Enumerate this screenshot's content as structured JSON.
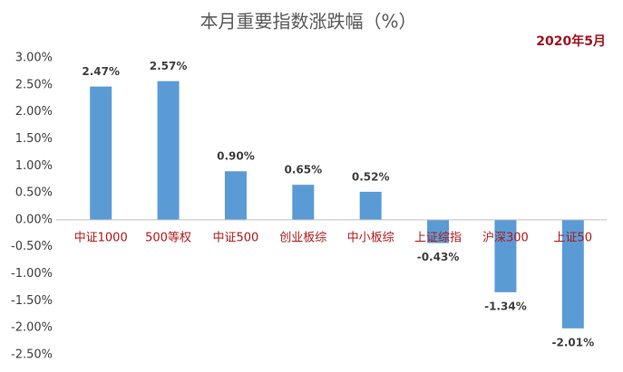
{
  "chart_data": {
    "type": "bar",
    "title": "本月重要指数涨跌幅（%）",
    "annotation": "2020年5月",
    "categories": [
      "中证1000",
      "500等权",
      "中证500",
      "创业板综",
      "中小板综",
      "上证综指",
      "沪深300",
      "上证50"
    ],
    "values": [
      2.47,
      2.57,
      0.9,
      0.65,
      0.52,
      -0.43,
      -1.34,
      -2.01
    ],
    "value_labels": [
      "2.47%",
      "2.57%",
      "0.90%",
      "0.65%",
      "0.52%",
      "-0.43%",
      "-1.34%",
      "-2.01%"
    ],
    "color": "#5b9bd5",
    "ylim": [
      -2.5,
      3.0
    ],
    "yticks": [
      {
        "value": -2.5,
        "label": "-2.50%"
      },
      {
        "value": -2.0,
        "label": "-2.00%"
      },
      {
        "value": -1.5,
        "label": "-1.50%"
      },
      {
        "value": -1.0,
        "label": "-1.00%"
      },
      {
        "value": -0.5,
        "label": "-0.50%"
      },
      {
        "value": 0,
        "label": "0.00%"
      },
      {
        "value": 0.5,
        "label": "0.50%"
      },
      {
        "value": 1.0,
        "label": "1.00%"
      },
      {
        "value": 1.5,
        "label": "1.50%"
      },
      {
        "value": 2.0,
        "label": "2.00%"
      },
      {
        "value": 2.5,
        "label": "2.50%"
      },
      {
        "value": 3.0,
        "label": "3.00%"
      }
    ],
    "grid": false
  }
}
